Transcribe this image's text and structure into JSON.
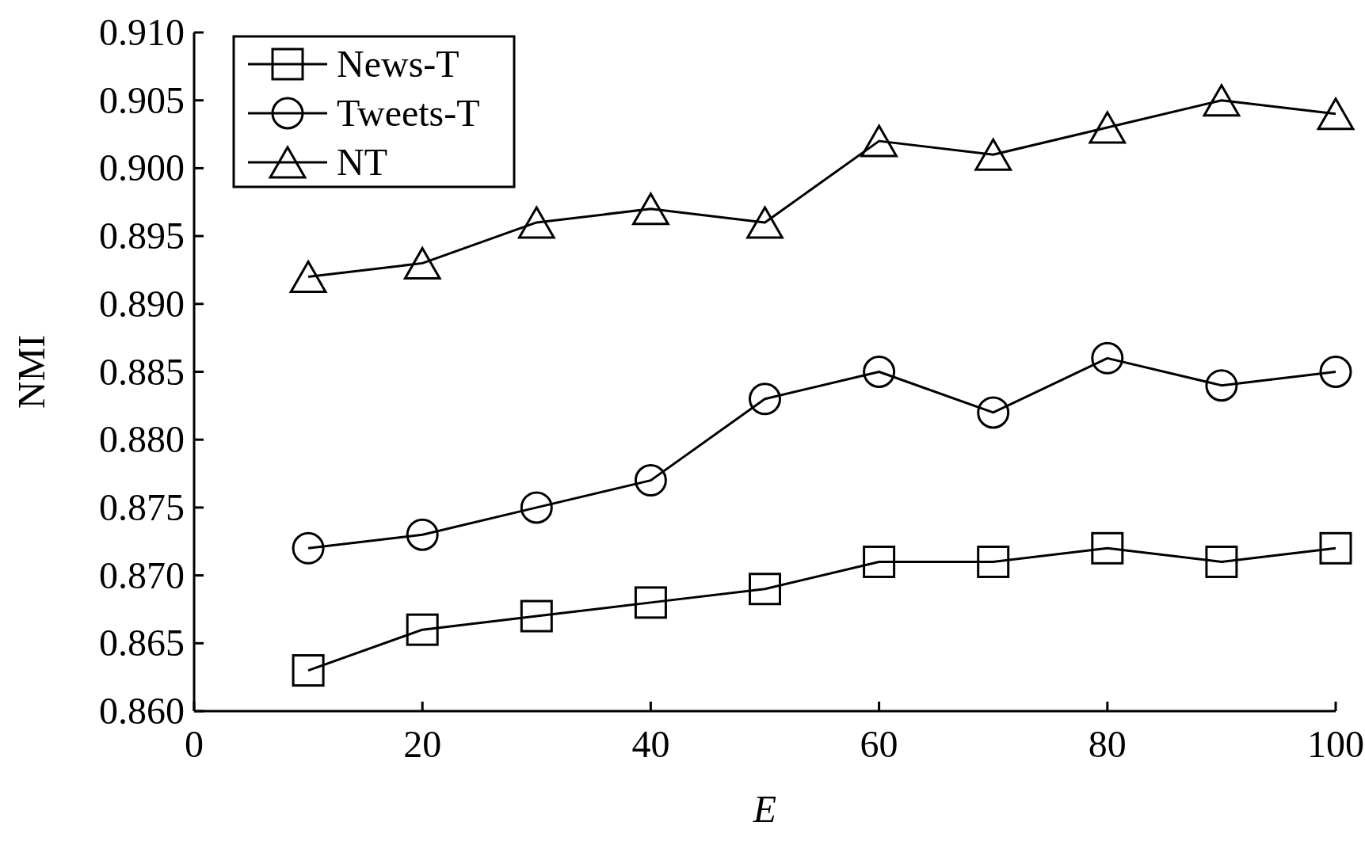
{
  "chart_data": {
    "type": "line",
    "xlabel": "E",
    "ylabel": "NMI",
    "x": [
      10,
      20,
      30,
      40,
      50,
      60,
      70,
      80,
      90,
      100
    ],
    "series": [
      {
        "name": "News-T",
        "color": "#000000",
        "marker": "square",
        "values": [
          0.863,
          0.866,
          0.867,
          0.868,
          0.869,
          0.871,
          0.871,
          0.872,
          0.871,
          0.872
        ]
      },
      {
        "name": "Tweets-T",
        "color": "#000000",
        "marker": "circle",
        "values": [
          0.872,
          0.873,
          0.875,
          0.877,
          0.883,
          0.885,
          0.882,
          0.886,
          0.884,
          0.885
        ]
      },
      {
        "name": "NT",
        "color": "#000000",
        "marker": "triangle",
        "values": [
          0.892,
          0.893,
          0.896,
          0.897,
          0.896,
          0.902,
          0.901,
          0.903,
          0.905,
          0.904
        ]
      }
    ],
    "xlim": [
      0,
      100
    ],
    "xticks": [
      0,
      20,
      40,
      60,
      80,
      100
    ],
    "ylim": [
      0.86,
      0.91
    ],
    "yticks": [
      {
        "value": 0.86,
        "label": "0.860"
      },
      {
        "value": 0.865,
        "label": "0.865"
      },
      {
        "value": 0.87,
        "label": "0.870"
      },
      {
        "value": 0.875,
        "label": "0.875"
      },
      {
        "value": 0.88,
        "label": "0.880"
      },
      {
        "value": 0.885,
        "label": "0.885"
      },
      {
        "value": 0.89,
        "label": "0.890"
      },
      {
        "value": 0.895,
        "label": "0.895"
      },
      {
        "value": 0.9,
        "label": "0.900"
      },
      {
        "value": 0.905,
        "label": "0.905"
      },
      {
        "value": 0.91,
        "label": "0.910"
      }
    ],
    "legend": "top left",
    "line_style": "solid"
  }
}
